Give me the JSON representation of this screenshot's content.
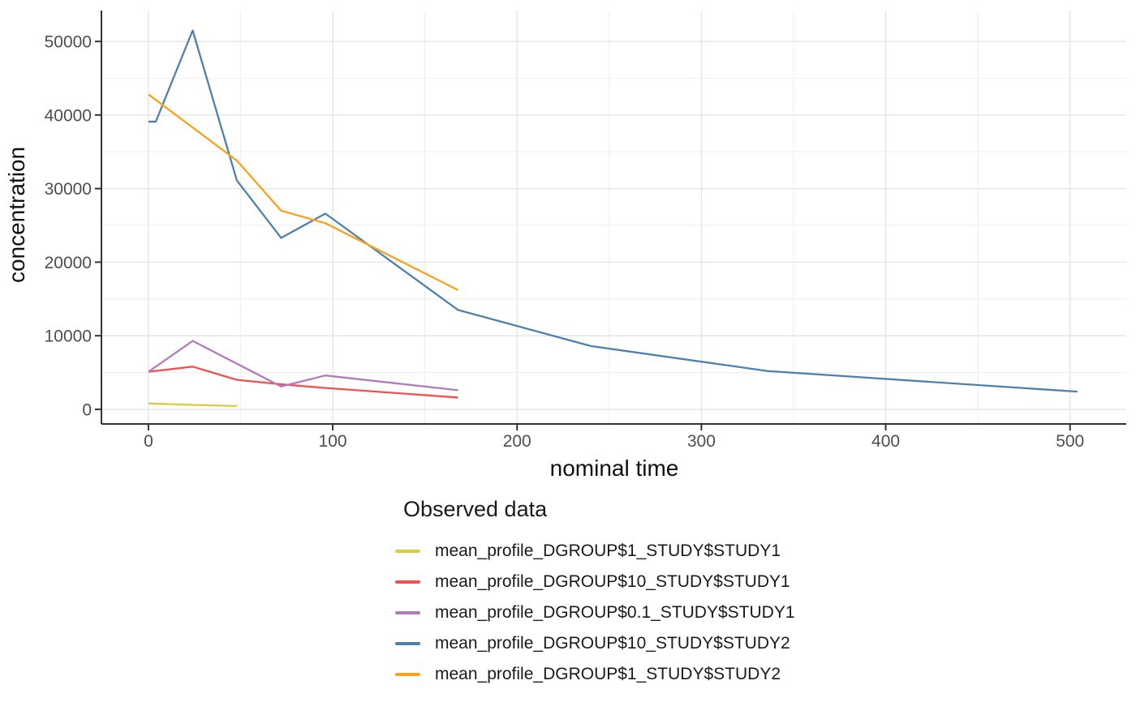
{
  "chart_data": {
    "type": "line",
    "title": "",
    "xlabel": "nominal time",
    "ylabel": "concentration",
    "legend_title": "Observed data",
    "legend_position": "bottom-left",
    "grid": "major+minor",
    "xlim": [
      -25.5,
      530.5
    ],
    "ylim": [
      -1990,
      54200
    ],
    "xticks": [
      0,
      100,
      200,
      300,
      400,
      500
    ],
    "yticks": [
      0,
      10000,
      20000,
      30000,
      40000,
      50000
    ],
    "minor_xticks": [
      50,
      150,
      250,
      350,
      450
    ],
    "minor_yticks": [
      5000,
      15000,
      25000,
      35000,
      45000
    ],
    "series": [
      {
        "name": "mean_profile_DGROUP$1_STUDY$STUDY1",
        "color": "#d9cd3c",
        "x": [
          0,
          24,
          48
        ],
        "y": [
          800,
          600,
          450
        ]
      },
      {
        "name": "mean_profile_DGROUP$10_STUDY$STUDY1",
        "color": "#f0524f",
        "x": [
          0,
          24,
          48,
          72,
          96,
          168
        ],
        "y": [
          5100,
          5800,
          4000,
          3400,
          2900,
          1600
        ]
      },
      {
        "name": "mean_profile_DGROUP$0.1_STUDY$STUDY1",
        "color": "#b27cba",
        "x": [
          0,
          24,
          72,
          96,
          168
        ],
        "y": [
          5100,
          9300,
          3100,
          4600,
          2600
        ]
      },
      {
        "name": "mean_profile_DGROUP$10_STUDY$STUDY2",
        "color": "#4f80ac",
        "x": [
          0,
          4,
          24,
          48,
          72,
          96,
          168,
          240,
          336,
          504
        ],
        "y": [
          39100,
          39100,
          51500,
          31100,
          23300,
          26600,
          13500,
          8600,
          5200,
          2400
        ]
      },
      {
        "name": "mean_profile_DGROUP$1_STUDY$STUDY2",
        "color": "#faa21e",
        "x": [
          0,
          48,
          72,
          96,
          168
        ],
        "y": [
          42800,
          33800,
          27000,
          25300,
          16200
        ]
      }
    ],
    "colors": {
      "background": "#ffffff",
      "grid_major": "#e3e3e3",
      "grid_minor": "#f1f1f1",
      "axis_line": "#333333",
      "tick_mark": "#333333",
      "tick_label": "#4d4d4d",
      "axis_title": "#111111",
      "legend_text": "#1a1a1a"
    }
  }
}
